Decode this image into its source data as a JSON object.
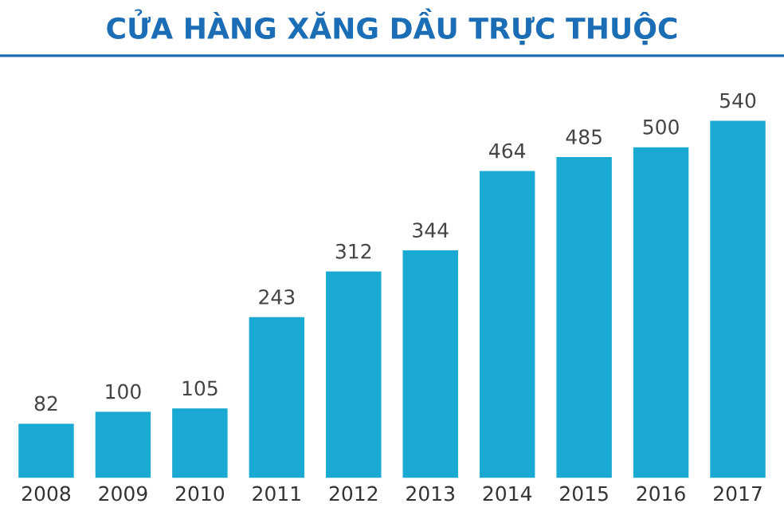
{
  "chart_data": {
    "type": "bar",
    "title": "CỬA HÀNG XĂNG DẦU TRỰC THUỘC",
    "categories": [
      "2008",
      "2009",
      "2010",
      "2011",
      "2012",
      "2013",
      "2014",
      "2015",
      "2016",
      "2017"
    ],
    "values": [
      82,
      100,
      105,
      243,
      312,
      344,
      464,
      485,
      500,
      540
    ],
    "color": "#19a9d2",
    "data_labels": true,
    "grid": false,
    "legend": false
  }
}
